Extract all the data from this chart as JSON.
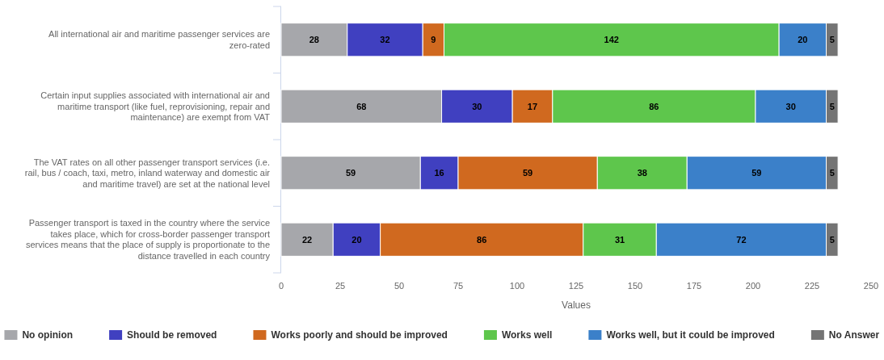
{
  "chart_data": {
    "type": "bar",
    "orientation": "horizontal",
    "stacked": true,
    "xlabel": "Values",
    "categories": [
      "All international air and maritime passenger services are zero-rated",
      "Certain input supplies associated with international air and maritime transport (like fuel, reprovisioning, repair and maintenance) are exempt from VAT",
      "The VAT rates on all other passenger transport services (i.e. rail, bus / coach, taxi, metro, inland waterway and domestic air and maritime travel) are set at the national level",
      "Passenger transport is taxed in the country where the service takes place, which for cross-border passenger transport services means that the place of supply is proportionate to the distance travelled in each country"
    ],
    "series": [
      {
        "name": "No opinion",
        "color": "#a6a7ab",
        "values": [
          28,
          68,
          59,
          22
        ]
      },
      {
        "name": "Should be removed",
        "color": "#4040c0",
        "values": [
          32,
          30,
          16,
          20
        ]
      },
      {
        "name": "Works poorly and should be improved",
        "color": "#d0691f",
        "values": [
          9,
          17,
          59,
          86
        ]
      },
      {
        "name": "Works well",
        "color": "#5ec64c",
        "values": [
          142,
          86,
          38,
          31
        ]
      },
      {
        "name": "Works well, but it could be improved",
        "color": "#3b80c9",
        "values": [
          20,
          30,
          59,
          72
        ]
      },
      {
        "name": "No Answer",
        "color": "#747474",
        "values": [
          5,
          5,
          5,
          5
        ]
      }
    ],
    "xlim": [
      0,
      250
    ],
    "xticks": [
      0,
      25,
      50,
      75,
      100,
      125,
      150,
      175,
      200,
      225,
      250
    ],
    "data_labels": true,
    "grid": false,
    "legend": "bottom"
  }
}
